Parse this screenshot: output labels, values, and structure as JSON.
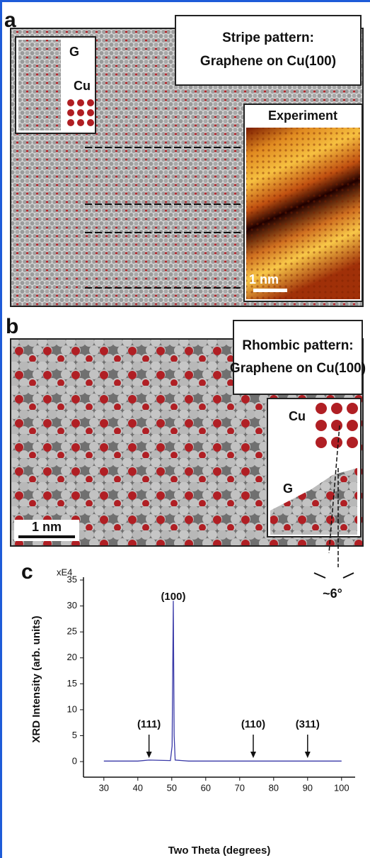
{
  "panel_a": {
    "label": "a",
    "callout": [
      "Stripe pattern:",
      "Graphene on Cu(100)"
    ],
    "inset_labels": [
      "G",
      "Cu"
    ],
    "experiment_title": "Experiment",
    "scale_bar": "1 nm"
  },
  "panel_b": {
    "label": "b",
    "callout": [
      "Rhombic pattern:",
      "Graphene on Cu(100)"
    ],
    "inset_labels": [
      "Cu",
      "G"
    ],
    "scale_bar": "1 nm",
    "angle": "~6°"
  },
  "chart_data": {
    "type": "line",
    "label": "c",
    "y_multiplier": "xE4",
    "xlabel": "Two Theta (degrees)",
    "ylabel": "XRD Intensity (arb. units)",
    "x": [
      30,
      40,
      43.3,
      49.6,
      50.1,
      50.45,
      50.7,
      51.0,
      55,
      60,
      70,
      80,
      90,
      100
    ],
    "values": [
      0.1,
      0.1,
      0.3,
      0.2,
      3,
      31,
      5,
      0.3,
      0.1,
      0.1,
      0.1,
      0.1,
      0.1,
      0.1
    ],
    "color": "#3a3aa8",
    "xlim": [
      24,
      104
    ],
    "ylim": [
      -3,
      35
    ],
    "xticks": [
      30,
      40,
      50,
      60,
      70,
      80,
      90,
      100
    ],
    "yticks": [
      0,
      5,
      10,
      15,
      20,
      25,
      30,
      35
    ],
    "annotations": [
      {
        "text": "(100)",
        "x": 50.45,
        "arrow": false
      },
      {
        "text": "(111)",
        "x": 43.3,
        "arrow": true
      },
      {
        "text": "(110)",
        "x": 74,
        "arrow": true
      },
      {
        "text": "(311)",
        "x": 90,
        "arrow": true
      }
    ]
  }
}
